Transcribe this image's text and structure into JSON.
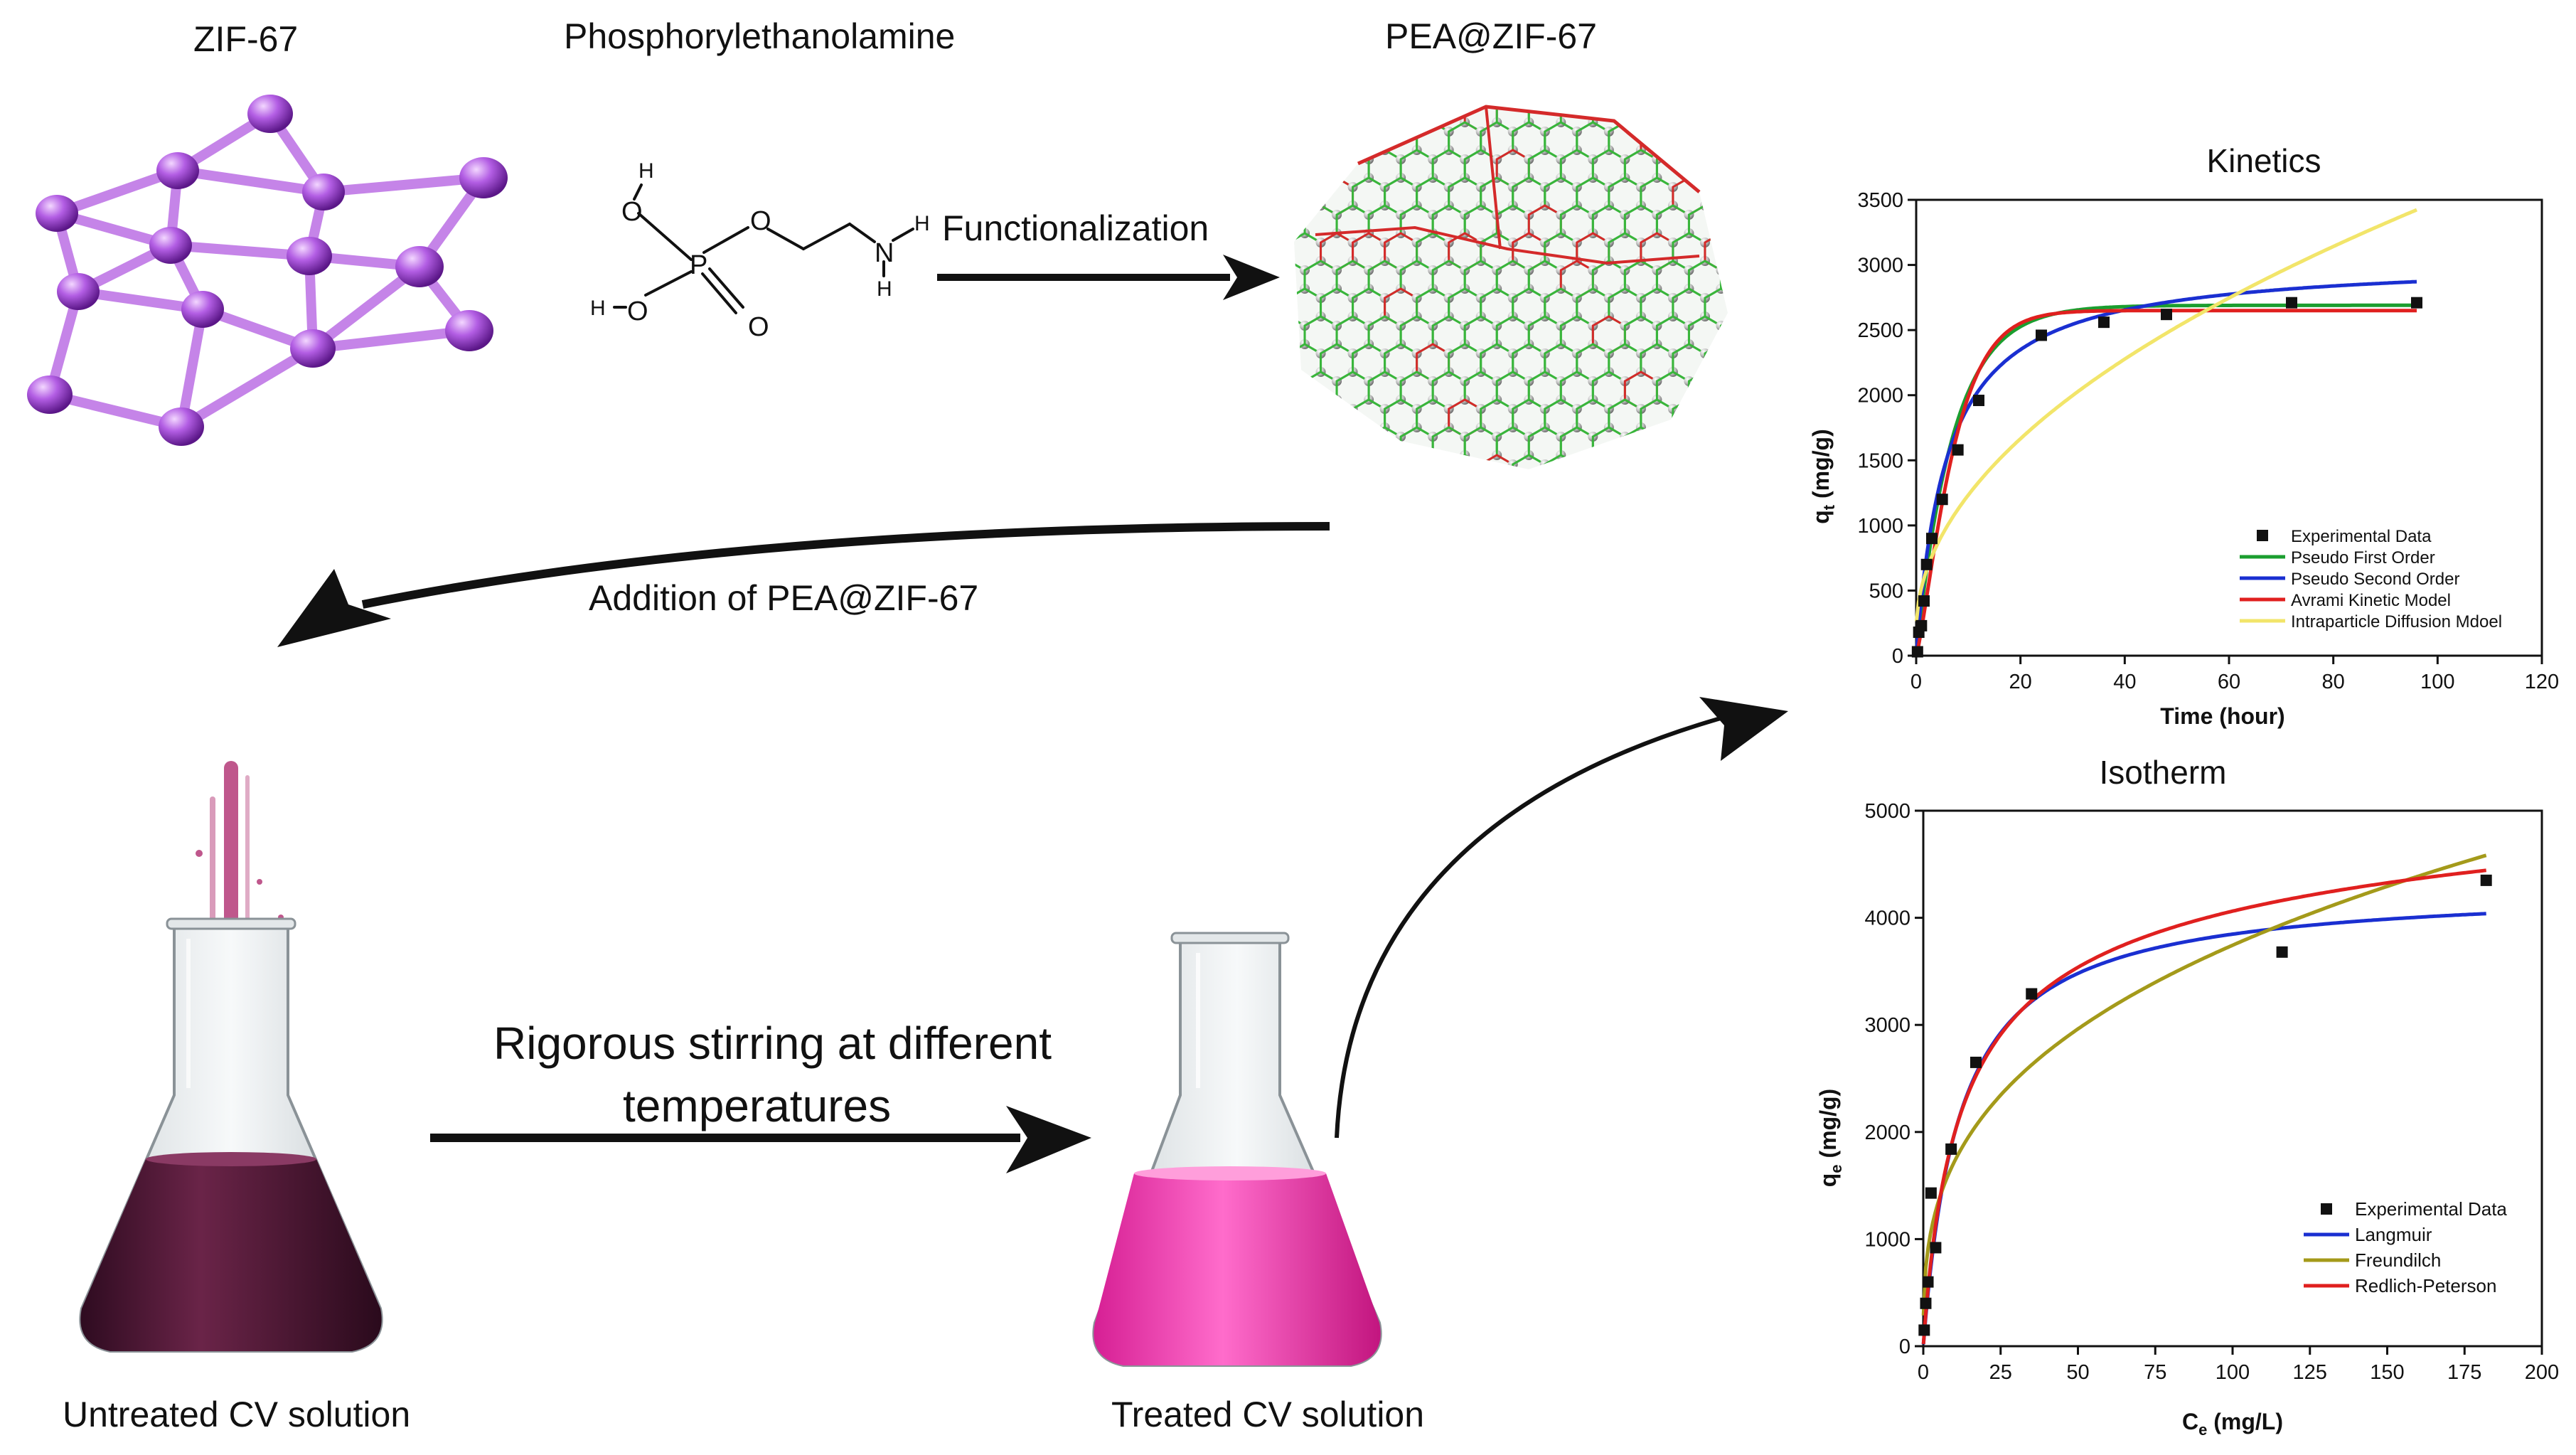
{
  "labels": {
    "zif67": "ZIF-67",
    "pea": "Phosphorylethanolamine",
    "pea_zif67": "PEA@ZIF-67",
    "functionalization": "Functionalization",
    "addition": "Addition of PEA@ZIF-67",
    "stirring_line1": "Rigorous stirring at different",
    "stirring_line2": "temperatures",
    "untreated": "Untreated CV solution",
    "treated": "Treated CV solution"
  },
  "molecule": {
    "atoms": [
      "H",
      "O",
      "O",
      "H",
      "N",
      "H",
      "P",
      "H",
      "O",
      "O"
    ]
  },
  "colors": {
    "zif_node": "#a24bd6",
    "zif_bond": "#c27fe6",
    "cage_bond_green": "#39b53b",
    "cage_bond_red": "#d42a2a",
    "cage_atom": "#bdbdbd",
    "untreated_liquid": "#5a1a3d",
    "treated_liquid": "#f23fb3"
  },
  "chart_data": [
    {
      "type": "scatter",
      "title": "Kinetics",
      "xlabel": "Time (hour)",
      "ylabel_main": "q",
      "ylabel_sub": "t",
      "ylabel_unit": " (mg/g)",
      "xlim": [
        0,
        120
      ],
      "ylim": [
        0,
        3500
      ],
      "xticks": [
        "0",
        "20",
        "40",
        "60",
        "80",
        "100",
        "120"
      ],
      "yticks": [
        "0",
        "500",
        "1000",
        "1500",
        "2000",
        "2500",
        "3000",
        "3500"
      ],
      "legend_position": "bottom-right",
      "experimental": {
        "name": "Experimental Data",
        "x": [
          0.25,
          0.5,
          1,
          1.5,
          2,
          3,
          5,
          8,
          12,
          24,
          36,
          48,
          72,
          96
        ],
        "y": [
          30,
          180,
          230,
          420,
          700,
          900,
          1200,
          1580,
          1960,
          2460,
          2560,
          2620,
          2710,
          2710
        ]
      },
      "fits": [
        {
          "name": "Pseudo First Order",
          "color": "#1b9e2f",
          "model": "pfo",
          "params": {
            "qe": 2690,
            "k": 0.14
          }
        },
        {
          "name": "Pseudo Second Order",
          "color": "#1a2fd1",
          "model": "pso",
          "params": {
            "qe": 3050,
            "k": 5.5e-05
          }
        },
        {
          "name": "Avrami Kinetic Model",
          "color": "#e0201f",
          "model": "avrami",
          "params": {
            "qe": 2650,
            "k": 0.13,
            "n": 1.25
          }
        },
        {
          "name": "Intraparticle Diffusion Mdoel",
          "color": "#f2e56a",
          "model": "ipd",
          "params": {
            "k": 330,
            "c": 190
          }
        }
      ]
    },
    {
      "type": "scatter",
      "title": "Isotherm",
      "xlabel_main": "C",
      "xlabel_sub": "e",
      "xlabel_unit": " (mg/L)",
      "ylabel_main": "q",
      "ylabel_sub": "e",
      "ylabel_unit": " (mg/g)",
      "xlim": [
        0,
        200
      ],
      "ylim": [
        0,
        5000
      ],
      "xticks": [
        "0",
        "25",
        "50",
        "75",
        "100",
        "125",
        "150",
        "175",
        "200"
      ],
      "yticks": [
        "0",
        "1000",
        "2000",
        "3000",
        "4000",
        "5000"
      ],
      "legend_position": "bottom-right",
      "experimental": {
        "name": "Experimental Data",
        "x": [
          0.3,
          0.8,
          1.5,
          2.5,
          4,
          9,
          17,
          35,
          116,
          182
        ],
        "y": [
          150,
          400,
          600,
          1430,
          920,
          1840,
          2650,
          3290,
          3680,
          4350
        ]
      },
      "fits": [
        {
          "name": "Langmuir",
          "color": "#1a2fd1",
          "model": "langmuir",
          "params": {
            "qm": 4300,
            "kl": 0.085
          }
        },
        {
          "name": "Freundilch",
          "color": "#a49a1a",
          "model": "freundlich",
          "params": {
            "kf": 790,
            "n": 2.96
          }
        },
        {
          "name": "Redlich-Peterson",
          "color": "#e0201f",
          "model": "rp",
          "params": {
            "k": 420,
            "a": 0.135,
            "b": 0.92
          }
        }
      ]
    }
  ]
}
